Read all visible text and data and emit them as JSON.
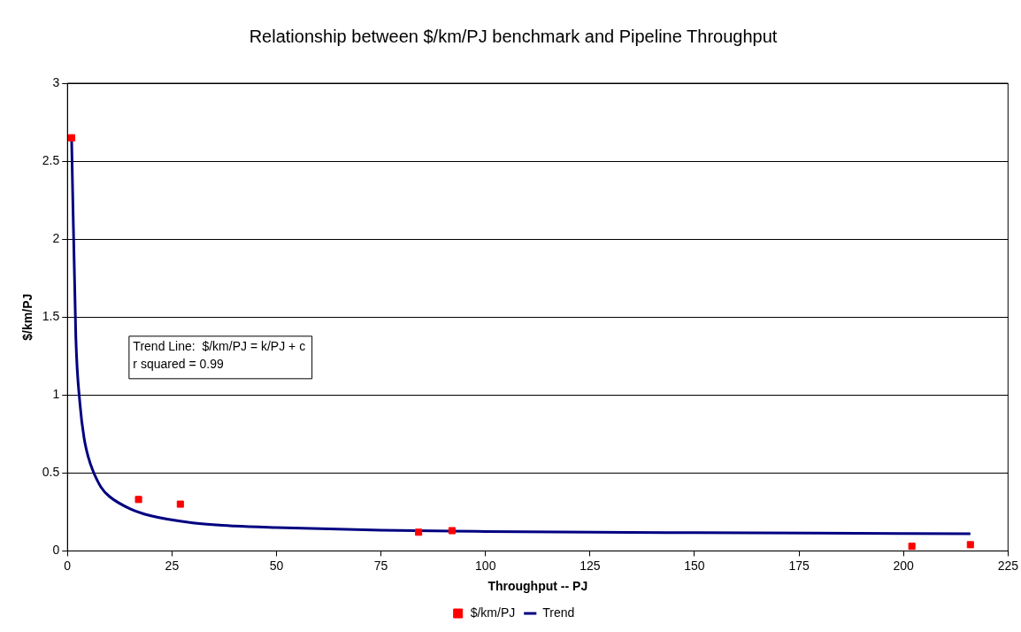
{
  "chart_data": {
    "type": "scatter",
    "title": "Relationship between $/km/PJ benchmark and Pipeline Throughput",
    "xlabel": "Throughput -- PJ",
    "ylabel": "$/km/PJ",
    "series": [
      {
        "name": "$/km/PJ",
        "color": "#ff0000",
        "marker": "square",
        "x": [
          1,
          17,
          27,
          84,
          92,
          202,
          216
        ],
        "values": [
          2.65,
          0.33,
          0.3,
          0.12,
          0.13,
          0.03,
          0.04
        ]
      },
      {
        "name": "Trend",
        "type": "line",
        "color": "#000080",
        "marker": "none",
        "line_style": "solid",
        "x": [
          1,
          2,
          3,
          4,
          5,
          6,
          8,
          10,
          15,
          20,
          30,
          40,
          50,
          75,
          100,
          150,
          200,
          216
        ],
        "values": [
          2.63,
          1.37,
          0.94,
          0.72,
          0.6,
          0.52,
          0.41,
          0.35,
          0.27,
          0.225,
          0.18,
          0.16,
          0.15,
          0.133,
          0.125,
          0.117,
          0.112,
          0.11
        ]
      }
    ],
    "xlim": [
      0,
      225
    ],
    "xticks": [
      0,
      25,
      50,
      75,
      100,
      125,
      150,
      175,
      200,
      225
    ],
    "ylim": [
      0,
      3
    ],
    "yticks": [
      0,
      0.5,
      1,
      1.5,
      2,
      2.5,
      3
    ],
    "grid": "y",
    "legend": "bottom",
    "annotations": [
      "Trend Line:  $/km/PJ = k/PJ + c\nr squared = 0.99"
    ]
  }
}
